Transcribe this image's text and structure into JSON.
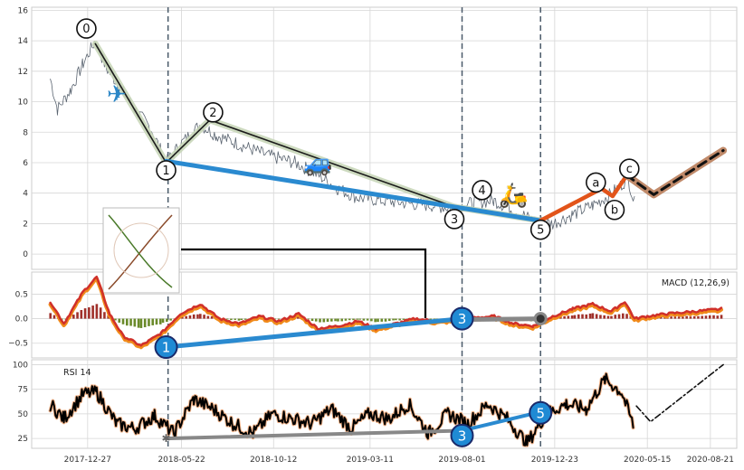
{
  "chart_data": [
    {
      "panel": "price",
      "type": "line",
      "ylim": [
        -1,
        16.2
      ],
      "yticks": [
        0,
        2,
        4,
        6,
        8,
        10,
        12,
        14,
        16
      ],
      "x_dates": [
        "2017-12-27",
        "2018-05-22",
        "2018-10-12",
        "2019-03-11",
        "2019-08-01",
        "2019-12-23",
        "2020-05-15",
        "2020-08-21"
      ],
      "event_lines": [
        "2018-05-01",
        "2019-08-01",
        "2019-12-01"
      ],
      "price_series_anchors": [
        [
          "2017-10-30",
          11.5
        ],
        [
          "2017-11-10",
          9.5
        ],
        [
          "2017-12-01",
          10.8
        ],
        [
          "2017-12-20",
          12.5
        ],
        [
          "2018-01-08",
          14.0
        ],
        [
          "2018-01-25",
          12.2
        ],
        [
          "2018-02-15",
          11.0
        ],
        [
          "2018-03-10",
          9.5
        ],
        [
          "2018-04-05",
          8.2
        ],
        [
          "2018-04-28",
          6.0
        ],
        [
          "2018-05-20",
          7.2
        ],
        [
          "2018-06-20",
          8.5
        ],
        [
          "2018-07-15",
          7.8
        ],
        [
          "2018-08-20",
          7.2
        ],
        [
          "2018-10-01",
          6.5
        ],
        [
          "2018-11-15",
          6.0
        ],
        [
          "2018-12-20",
          5.2
        ],
        [
          "2019-01-20",
          4.3
        ],
        [
          "2019-02-20",
          3.7
        ],
        [
          "2019-04-01",
          3.5
        ],
        [
          "2019-05-15",
          3.3
        ],
        [
          "2019-06-15",
          3.2
        ],
        [
          "2019-07-20",
          3.0
        ],
        [
          "2019-08-20",
          3.4
        ],
        [
          "2019-09-20",
          3.5
        ],
        [
          "2019-10-20",
          2.9
        ],
        [
          "2019-11-20",
          2.2
        ],
        [
          "2019-12-20",
          2.0
        ],
        [
          "2020-01-20",
          2.6
        ],
        [
          "2020-02-20",
          3.2
        ],
        [
          "2020-03-15",
          3.8
        ],
        [
          "2020-04-01",
          4.4
        ],
        [
          "2020-04-15",
          5.0
        ],
        [
          "2020-04-27",
          3.0
        ]
      ],
      "wave_path": [
        [
          "2018-01-08",
          13.8
        ],
        [
          "2018-04-28",
          6.0
        ],
        [
          "2018-07-05",
          8.8
        ],
        [
          "2019-07-20",
          3.1
        ],
        [
          "2019-12-01",
          2.2
        ]
      ],
      "trend_line": [
        [
          "2018-04-28",
          6.1
        ],
        [
          "2019-12-01",
          2.2
        ]
      ],
      "correction_path": [
        [
          "2019-12-01",
          2.2
        ],
        [
          "2020-03-05",
          4.3
        ],
        [
          "2020-03-22",
          3.8
        ],
        [
          "2020-04-12",
          5.1
        ]
      ],
      "projection_path": [
        [
          "2020-04-12",
          5.2
        ],
        [
          "2020-05-25",
          3.9
        ],
        [
          "2020-09-10",
          6.8
        ]
      ],
      "wave_labels": [
        {
          "label": "0",
          "x": "2017-12-25",
          "y": 14.8
        },
        {
          "label": "1",
          "x": "2018-04-28",
          "y": 5.5
        },
        {
          "label": "2",
          "x": "2018-07-10",
          "y": 9.3
        },
        {
          "label": "3",
          "x": "2019-07-20",
          "y": 2.3
        },
        {
          "label": "4",
          "x": "2019-09-01",
          "y": 4.2
        },
        {
          "label": "5",
          "x": "2019-12-01",
          "y": 1.6
        },
        {
          "label": "a",
          "x": "2020-02-25",
          "y": 4.7
        },
        {
          "label": "b",
          "x": "2020-03-25",
          "y": 2.9
        },
        {
          "label": "c",
          "x": "2020-04-17",
          "y": 5.6
        }
      ],
      "icons": [
        {
          "name": "airplane",
          "glyph": "✈",
          "x": "2018-02-10",
          "y": 10.5
        },
        {
          "name": "car",
          "glyph": "🚙",
          "x": "2018-12-20",
          "y": 6.0
        },
        {
          "name": "scooter",
          "glyph": "🛵",
          "x": "2019-10-20",
          "y": 3.9
        }
      ]
    },
    {
      "panel": "macd",
      "type": "line",
      "title": "MACD (12,26,9)",
      "ylim": [
        -0.8,
        0.95
      ],
      "yticks": [
        -0.5,
        0.0,
        0.5
      ],
      "ytick_labels": [
        "−0.5",
        "0.0",
        "0.5"
      ],
      "macd_anchors": [
        [
          "2017-10-30",
          0.35
        ],
        [
          "2017-11-20",
          -0.1
        ],
        [
          "2017-12-20",
          0.55
        ],
        [
          "2018-01-10",
          0.85
        ],
        [
          "2018-01-30",
          0.1
        ],
        [
          "2018-02-20",
          -0.35
        ],
        [
          "2018-03-20",
          -0.55
        ],
        [
          "2018-04-20",
          -0.3
        ],
        [
          "2018-05-20",
          0.1
        ],
        [
          "2018-06-20",
          0.3
        ],
        [
          "2018-07-20",
          0.0
        ],
        [
          "2018-08-20",
          -0.1
        ],
        [
          "2018-09-20",
          0.05
        ],
        [
          "2018-10-20",
          -0.05
        ],
        [
          "2018-11-20",
          0.1
        ],
        [
          "2018-12-20",
          -0.2
        ],
        [
          "2019-01-20",
          -0.15
        ],
        [
          "2019-02-20",
          -0.05
        ],
        [
          "2019-03-20",
          -0.2
        ],
        [
          "2019-04-20",
          -0.1
        ],
        [
          "2019-05-20",
          0.0
        ],
        [
          "2019-06-20",
          -0.05
        ],
        [
          "2019-07-20",
          -0.02
        ],
        [
          "2019-08-20",
          0.02
        ],
        [
          "2019-09-20",
          0.05
        ],
        [
          "2019-10-20",
          -0.1
        ],
        [
          "2019-11-20",
          -0.15
        ],
        [
          "2019-12-20",
          0.05
        ],
        [
          "2020-01-20",
          0.2
        ],
        [
          "2020-02-20",
          0.3
        ],
        [
          "2020-03-20",
          0.15
        ],
        [
          "2020-04-10",
          0.35
        ],
        [
          "2020-04-25",
          0.0
        ],
        [
          "2020-05-15",
          0.05
        ],
        [
          "2020-06-15",
          0.1
        ],
        [
          "2020-09-10",
          0.2
        ]
      ],
      "trend_line": [
        [
          "2018-04-28",
          -0.58
        ],
        [
          "2019-08-01",
          0.0
        ]
      ],
      "grey_line": [
        [
          "2019-08-01",
          -0.02
        ],
        [
          "2019-12-01",
          0.0
        ]
      ],
      "markers": [
        {
          "label": "1",
          "x": "2018-04-28",
          "y": -0.58
        },
        {
          "label": "3",
          "x": "2019-08-01",
          "y": 0.0
        }
      ]
    },
    {
      "panel": "rsi",
      "type": "line",
      "title": "RSI 14",
      "ylim": [
        15,
        105
      ],
      "yticks": [
        25,
        50,
        75,
        100
      ],
      "rsi_anchors": [
        [
          "2017-10-30",
          60
        ],
        [
          "2017-11-20",
          45
        ],
        [
          "2017-12-20",
          70
        ],
        [
          "2018-01-10",
          72
        ],
        [
          "2018-02-10",
          40
        ],
        [
          "2018-03-10",
          35
        ],
        [
          "2018-04-10",
          48
        ],
        [
          "2018-05-10",
          30
        ],
        [
          "2018-06-10",
          65
        ],
        [
          "2018-07-10",
          55
        ],
        [
          "2018-08-10",
          40
        ],
        [
          "2018-09-10",
          30
        ],
        [
          "2018-10-10",
          50
        ],
        [
          "2018-11-10",
          45
        ],
        [
          "2018-12-10",
          40
        ],
        [
          "2019-01-10",
          55
        ],
        [
          "2019-02-10",
          35
        ],
        [
          "2019-03-10",
          50
        ],
        [
          "2019-04-10",
          45
        ],
        [
          "2019-05-10",
          60
        ],
        [
          "2019-06-10",
          30
        ],
        [
          "2019-07-10",
          50
        ],
        [
          "2019-08-10",
          40
        ],
        [
          "2019-09-10",
          60
        ],
        [
          "2019-10-10",
          45
        ],
        [
          "2019-11-10",
          20
        ],
        [
          "2019-12-10",
          50
        ],
        [
          "2020-01-10",
          60
        ],
        [
          "2020-02-10",
          55
        ],
        [
          "2020-03-10",
          85
        ],
        [
          "2020-04-05",
          72
        ],
        [
          "2020-04-25",
          35
        ]
      ],
      "projection": [
        [
          "2020-04-28",
          58
        ],
        [
          "2020-05-20",
          42
        ],
        [
          "2020-09-10",
          100
        ]
      ],
      "grey_line": [
        [
          "2018-04-28",
          25
        ],
        [
          "2019-08-01",
          33
        ]
      ],
      "blue_line": [
        [
          "2019-08-01",
          33
        ],
        [
          "2019-12-01",
          52
        ]
      ],
      "markers": [
        {
          "label": "3",
          "x": "2019-08-01",
          "y": 28
        },
        {
          "label": "5",
          "x": "2019-12-01",
          "y": 51
        }
      ]
    }
  ]
}
